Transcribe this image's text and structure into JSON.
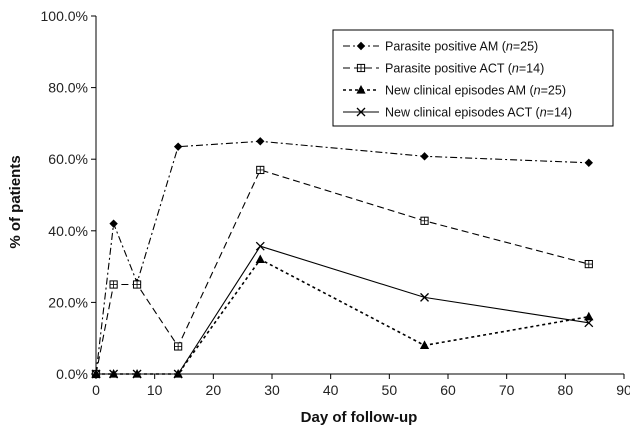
{
  "chart_data": {
    "type": "line",
    "xlabel": "Day of follow-up",
    "ylabel": "% of patients",
    "xlim": [
      0,
      90
    ],
    "ylim": [
      0,
      100
    ],
    "x_ticks": [
      0,
      10,
      20,
      30,
      40,
      50,
      60,
      70,
      80,
      90
    ],
    "x_tick_labels": [
      "0",
      "10",
      "20",
      "30",
      "40",
      "50",
      "60",
      "70",
      "80",
      "90"
    ],
    "y_ticks": [
      0,
      20,
      40,
      60,
      80,
      100
    ],
    "y_tick_labels": [
      "0.0%",
      "20.0%",
      "40.0%",
      "60.0%",
      "80.0%",
      "100.0%"
    ],
    "grid": false,
    "legend_position": "top-right",
    "series": [
      {
        "name_prefix": "Parasite positive AM (",
        "name_n": "n",
        "name_suffix": "=25)",
        "marker": "diamond",
        "line": "dashdot",
        "x": [
          0,
          3,
          7,
          14,
          28,
          56,
          84
        ],
        "values": [
          0,
          42.0,
          25.5,
          63.5,
          65.0,
          60.8,
          59.0
        ]
      },
      {
        "name_prefix": "Parasite positive ACT (",
        "name_n": "n",
        "name_suffix": "=14)",
        "marker": "square",
        "line": "dashed",
        "x": [
          0,
          3,
          7,
          14,
          28,
          56,
          84
        ],
        "values": [
          0,
          25.0,
          25.0,
          7.7,
          57.0,
          42.8,
          30.7
        ]
      },
      {
        "name_prefix": "New clinical episodes AM (",
        "name_n": "n",
        "name_suffix": "=25)",
        "marker": "triangle",
        "line": "dotted",
        "x": [
          0,
          3,
          7,
          14,
          28,
          56,
          84
        ],
        "values": [
          0,
          0,
          0,
          0,
          32.0,
          8.0,
          16.0
        ]
      },
      {
        "name_prefix": "New clinical episodes ACT (",
        "name_n": "n",
        "name_suffix": "=14)",
        "marker": "cross",
        "line": "solid",
        "x": [
          0,
          3,
          7,
          14,
          28,
          56,
          84
        ],
        "values": [
          0,
          0,
          0,
          0,
          35.7,
          21.4,
          14.3
        ]
      }
    ]
  }
}
